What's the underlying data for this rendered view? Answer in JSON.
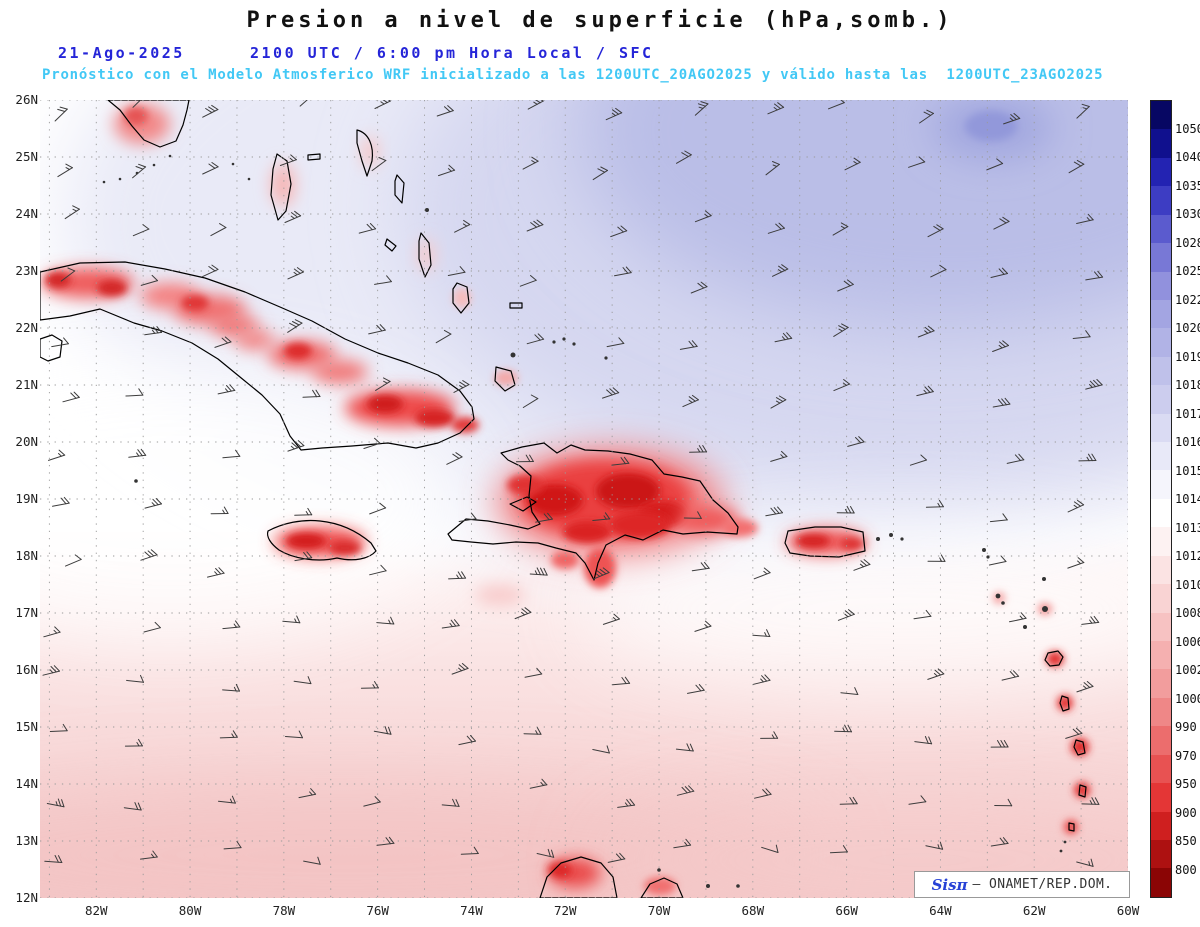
{
  "title": "Presion a nivel de superficie (hPa,somb.)",
  "header": {
    "date": "21-Ago-2025",
    "valid_time": "2100 UTC / 6:00 pm Hora Local / SFC",
    "model_line": "Pronóstico con el Modelo Atmosferico WRF inicializado a las 1200UTC_20AGO2025 y válido hasta las  1200UTC_23AGO2025"
  },
  "axes": {
    "lat_ticks": [
      "26N",
      "25N",
      "24N",
      "23N",
      "22N",
      "21N",
      "20N",
      "19N",
      "18N",
      "17N",
      "16N",
      "15N",
      "14N",
      "13N",
      "12N"
    ],
    "lon_ticks": [
      "82W",
      "80W",
      "78W",
      "76W",
      "74W",
      "72W",
      "70W",
      "68W",
      "66W",
      "64W",
      "62W",
      "60W"
    ]
  },
  "colorbar": {
    "unit": "hPa",
    "labels": [
      "1050",
      "1040",
      "1035",
      "1030",
      "1028",
      "1025",
      "1022",
      "1020",
      "1019",
      "1018",
      "1017",
      "1016",
      "1015",
      "1014",
      "1013",
      "1012",
      "1010",
      "1008",
      "1006",
      "1002",
      "1000",
      "990",
      "970",
      "950",
      "900",
      "850",
      "800"
    ],
    "colors": [
      "#070763",
      "#10108e",
      "#2323b2",
      "#3d3dc3",
      "#5b5bce",
      "#7878d6",
      "#9191dd",
      "#a3a5e2",
      "#b1b3e6",
      "#bfc1ea",
      "#cccdee",
      "#dadbf3",
      "#e8e9f8",
      "#f5f5fc",
      "#ffffff",
      "#fdf2f2",
      "#fbe3e3",
      "#f9d3d3",
      "#f7c2c2",
      "#f5b0b0",
      "#f29d9d",
      "#ef8787",
      "#ec6d6d",
      "#e85252",
      "#e43636",
      "#cf1f1f",
      "#ad1111",
      "#8b0505"
    ]
  },
  "watermark": {
    "brand": "Sisπ",
    "org": "– ONAMET/REP.DOM."
  },
  "wind_barbs": {
    "description": "easterly trade-wind barbs over the whole domain",
    "approx_speed_kt": "10-20"
  },
  "chart_data": {
    "type": "heatmap",
    "field": "surface pressure (hPa), shaded",
    "lon_range": [
      "83.2W",
      "60W"
    ],
    "lat_range": [
      "12N",
      "26N"
    ],
    "features": [
      {
        "region": "NW Atlantic (upper-right quadrant)",
        "approx_value_hPa": 1018
      },
      {
        "region": "local pressure maximum near 25.5N 63W",
        "approx_value_hPa": 1020
      },
      {
        "region": "white central band 19N-21N",
        "approx_value_hPa": 1014
      },
      {
        "region": "southern Caribbean 12N-16N",
        "approx_value_hPa": 1011
      },
      {
        "region": "Cuba interior (heat low, red shading)",
        "approx_value_hPa": 1004
      },
      {
        "region": "Hispaniola interior (strong low, dark red)",
        "approx_value_hPa": 1000
      },
      {
        "region": "Jamaica / Puerto Rico / Lesser Antilles land points",
        "approx_value_hPa": 1005
      }
    ]
  }
}
